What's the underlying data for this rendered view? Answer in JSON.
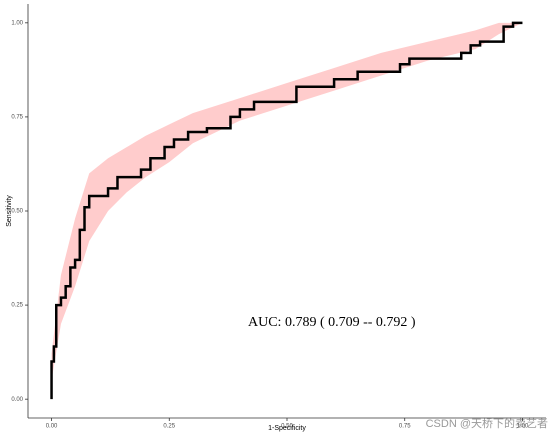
{
  "chart_data": {
    "type": "line",
    "xlabel": "1-Specificity",
    "ylabel": "Sensitivity",
    "annotation": "AUC: 0.789 ( 0.709 -- 0.792 )",
    "watermark": "CSDN @天桥下的卖艺者",
    "xlim": [
      -0.05,
      1.05
    ],
    "ylim": [
      -0.05,
      1.05
    ],
    "xticks": [
      {
        "value": 0,
        "label": "0.00"
      },
      {
        "value": 0.25,
        "label": "0.25"
      },
      {
        "value": 0.5,
        "label": "0.50"
      },
      {
        "value": 0.75,
        "label": "0.75"
      },
      {
        "value": 1,
        "label": "1.00"
      }
    ],
    "yticks": [
      {
        "value": 0,
        "label": "0.00"
      },
      {
        "value": 0.25,
        "label": "0.25"
      },
      {
        "value": 0.5,
        "label": "0.50"
      },
      {
        "value": 0.75,
        "label": "0.75"
      },
      {
        "value": 1,
        "label": "1.00"
      }
    ],
    "band": {
      "color": "#ffcccc",
      "x": [
        0,
        0.02,
        0.05,
        0.08,
        0.12,
        0.16,
        0.2,
        0.25,
        0.3,
        0.35,
        0.4,
        0.5,
        0.6,
        0.7,
        0.8,
        0.9,
        0.95,
        1.0
      ],
      "upper": [
        0.12,
        0.33,
        0.48,
        0.6,
        0.64,
        0.67,
        0.7,
        0.73,
        0.76,
        0.78,
        0.8,
        0.84,
        0.88,
        0.92,
        0.95,
        0.98,
        1.0,
        1.0
      ],
      "lower": [
        0.05,
        0.2,
        0.3,
        0.42,
        0.5,
        0.55,
        0.59,
        0.63,
        0.68,
        0.71,
        0.74,
        0.78,
        0.82,
        0.86,
        0.9,
        0.93,
        0.97,
        1.0
      ]
    },
    "series": [
      {
        "color": "#000000",
        "x": [
          0,
          0,
          0.005,
          0.005,
          0.01,
          0.01,
          0.02,
          0.02,
          0.03,
          0.03,
          0.04,
          0.04,
          0.05,
          0.05,
          0.06,
          0.06,
          0.07,
          0.07,
          0.08,
          0.08,
          0.12,
          0.12,
          0.14,
          0.14,
          0.19,
          0.19,
          0.21,
          0.21,
          0.24,
          0.24,
          0.26,
          0.26,
          0.29,
          0.29,
          0.33,
          0.33,
          0.38,
          0.38,
          0.4,
          0.4,
          0.43,
          0.43,
          0.52,
          0.52,
          0.6,
          0.6,
          0.65,
          0.65,
          0.74,
          0.74,
          0.76,
          0.76,
          0.87,
          0.87,
          0.89,
          0.89,
          0.91,
          0.91,
          0.96,
          0.96,
          0.98,
          0.98,
          1.0
        ],
        "values": [
          0,
          0.1,
          0.1,
          0.14,
          0.14,
          0.25,
          0.25,
          0.27,
          0.27,
          0.3,
          0.3,
          0.35,
          0.35,
          0.37,
          0.37,
          0.45,
          0.45,
          0.51,
          0.51,
          0.54,
          0.54,
          0.56,
          0.56,
          0.59,
          0.59,
          0.61,
          0.61,
          0.64,
          0.64,
          0.67,
          0.67,
          0.69,
          0.69,
          0.71,
          0.71,
          0.72,
          0.72,
          0.75,
          0.75,
          0.77,
          0.77,
          0.79,
          0.79,
          0.83,
          0.83,
          0.85,
          0.85,
          0.87,
          0.87,
          0.89,
          0.89,
          0.905,
          0.905,
          0.92,
          0.92,
          0.94,
          0.94,
          0.95,
          0.95,
          0.99,
          0.99,
          1.0,
          1.0
        ]
      }
    ]
  }
}
